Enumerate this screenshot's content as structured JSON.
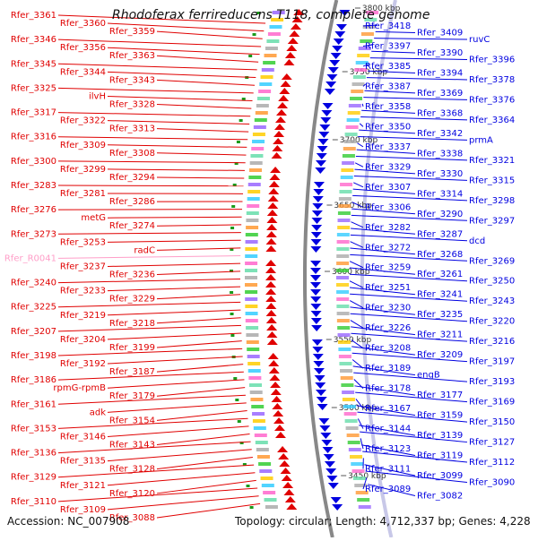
{
  "header": {
    "title": "Rhodoferax ferrireducens T118, complete genome"
  },
  "footer": {
    "accession": "Accession: NC_007908",
    "topology": "Topology: circular; Length: 4,712,337 bp; Genes: 4,228"
  },
  "colors": {
    "forward": "#e00000",
    "reverse": "#0000e0",
    "rna": "#ff9ec8",
    "backbone": "#888888",
    "tick": "#1a9a1a"
  },
  "scale_ticks": [
    "3800 kbp",
    "3750 kbp",
    "3700 kbp",
    "3650 kbp",
    "3600 kbp",
    "3550 kbp",
    "3500 kbp",
    "3450 kbp"
  ],
  "left_labels": [
    {
      "text": "Rfer_3361",
      "type": "gene"
    },
    {
      "text": "Rfer_3360",
      "type": "gene"
    },
    {
      "text": "Rfer_3359",
      "type": "gene"
    },
    {
      "text": "Rfer_3346",
      "type": "gene"
    },
    {
      "text": "Rfer_3356",
      "type": "gene"
    },
    {
      "text": "Rfer_3363",
      "type": "gene"
    },
    {
      "text": "Rfer_3345",
      "type": "gene"
    },
    {
      "text": "Rfer_3344",
      "type": "gene"
    },
    {
      "text": "Rfer_3343",
      "type": "gene"
    },
    {
      "text": "Rfer_3325",
      "type": "gene"
    },
    {
      "text": "ilvH",
      "type": "gene"
    },
    {
      "text": "Rfer_3328",
      "type": "gene"
    },
    {
      "text": "Rfer_3317",
      "type": "gene"
    },
    {
      "text": "Rfer_3322",
      "type": "gene"
    },
    {
      "text": "Rfer_3313",
      "type": "gene"
    },
    {
      "text": "Rfer_3316",
      "type": "gene"
    },
    {
      "text": "Rfer_3309",
      "type": "gene"
    },
    {
      "text": "Rfer_3308",
      "type": "gene"
    },
    {
      "text": "Rfer_3300",
      "type": "gene"
    },
    {
      "text": "Rfer_3299",
      "type": "gene"
    },
    {
      "text": "Rfer_3294",
      "type": "gene"
    },
    {
      "text": "Rfer_3283",
      "type": "gene"
    },
    {
      "text": "Rfer_3281",
      "type": "gene"
    },
    {
      "text": "Rfer_3286",
      "type": "gene"
    },
    {
      "text": "Rfer_3276",
      "type": "gene"
    },
    {
      "text": "metG",
      "type": "gene"
    },
    {
      "text": "Rfer_3274",
      "type": "gene"
    },
    {
      "text": "Rfer_3273",
      "type": "gene"
    },
    {
      "text": "Rfer_3253",
      "type": "gene"
    },
    {
      "text": "radC",
      "type": "gene"
    },
    {
      "text": "Rfer_R0041",
      "type": "rna"
    },
    {
      "text": "Rfer_3237",
      "type": "gene"
    },
    {
      "text": "Rfer_3236",
      "type": "gene"
    },
    {
      "text": "Rfer_3240",
      "type": "gene"
    },
    {
      "text": "Rfer_3233",
      "type": "gene"
    },
    {
      "text": "Rfer_3229",
      "type": "gene"
    },
    {
      "text": "Rfer_3225",
      "type": "gene"
    },
    {
      "text": "Rfer_3219",
      "type": "gene"
    },
    {
      "text": "Rfer_3218",
      "type": "gene"
    },
    {
      "text": "Rfer_3207",
      "type": "gene"
    },
    {
      "text": "Rfer_3204",
      "type": "gene"
    },
    {
      "text": "Rfer_3199",
      "type": "gene"
    },
    {
      "text": "Rfer_3198",
      "type": "gene"
    },
    {
      "text": "Rfer_3192",
      "type": "gene"
    },
    {
      "text": "Rfer_3187",
      "type": "gene"
    },
    {
      "text": "Rfer_3186",
      "type": "gene"
    },
    {
      "text": "rpmG-rpmB",
      "type": "gene"
    },
    {
      "text": "Rfer_3179",
      "type": "gene"
    },
    {
      "text": "Rfer_3161",
      "type": "gene"
    },
    {
      "text": "adk",
      "type": "gene"
    },
    {
      "text": "Rfer_3154",
      "type": "gene"
    },
    {
      "text": "Rfer_3153",
      "type": "gene"
    },
    {
      "text": "Rfer_3146",
      "type": "gene"
    },
    {
      "text": "Rfer_3143",
      "type": "gene"
    },
    {
      "text": "Rfer_3136",
      "type": "gene"
    },
    {
      "text": "Rfer_3135",
      "type": "gene"
    },
    {
      "text": "Rfer_3128",
      "type": "gene"
    },
    {
      "text": "Rfer_3129",
      "type": "gene"
    },
    {
      "text": "Rfer_3121",
      "type": "gene"
    },
    {
      "text": "Rfer_3120",
      "type": "gene"
    },
    {
      "text": "Rfer_3110",
      "type": "gene"
    },
    {
      "text": "Rfer_3109",
      "type": "gene"
    },
    {
      "text": "Rfer_3088",
      "type": "gene"
    }
  ],
  "right_labels": [
    {
      "text": "Rfer_3418"
    },
    {
      "text": "Rfer_3409"
    },
    {
      "text": "ruvC"
    },
    {
      "text": "Rfer_3397"
    },
    {
      "text": "Rfer_3390"
    },
    {
      "text": "Rfer_3396"
    },
    {
      "text": "Rfer_3385"
    },
    {
      "text": "Rfer_3394"
    },
    {
      "text": "Rfer_3378"
    },
    {
      "text": "Rfer_3387"
    },
    {
      "text": "Rfer_3369"
    },
    {
      "text": "Rfer_3376"
    },
    {
      "text": "Rfer_3358"
    },
    {
      "text": "Rfer_3368"
    },
    {
      "text": "Rfer_3364"
    },
    {
      "text": "Rfer_3350"
    },
    {
      "text": "Rfer_3342"
    },
    {
      "text": "prmA"
    },
    {
      "text": "Rfer_3337"
    },
    {
      "text": "Rfer_3338"
    },
    {
      "text": "Rfer_3321"
    },
    {
      "text": "Rfer_3329"
    },
    {
      "text": "Rfer_3330"
    },
    {
      "text": "Rfer_3315"
    },
    {
      "text": "Rfer_3307"
    },
    {
      "text": "Rfer_3314"
    },
    {
      "text": "Rfer_3298"
    },
    {
      "text": "Rfer_3306"
    },
    {
      "text": "Rfer_3290"
    },
    {
      "text": "Rfer_3297"
    },
    {
      "text": "Rfer_3282"
    },
    {
      "text": "Rfer_3287"
    },
    {
      "text": "dcd"
    },
    {
      "text": "Rfer_3272"
    },
    {
      "text": "Rfer_3268"
    },
    {
      "text": "Rfer_3269"
    },
    {
      "text": "Rfer_3259"
    },
    {
      "text": "Rfer_3261"
    },
    {
      "text": "Rfer_3250"
    },
    {
      "text": "Rfer_3251"
    },
    {
      "text": "Rfer_3241"
    },
    {
      "text": "Rfer_3243"
    },
    {
      "text": "Rfer_3230"
    },
    {
      "text": "Rfer_3235"
    },
    {
      "text": "Rfer_3220"
    },
    {
      "text": "Rfer_3226"
    },
    {
      "text": "Rfer_3211"
    },
    {
      "text": "Rfer_3216"
    },
    {
      "text": "Rfer_3208"
    },
    {
      "text": "Rfer_3209"
    },
    {
      "text": "Rfer_3197"
    },
    {
      "text": "Rfer_3189"
    },
    {
      "text": "engB"
    },
    {
      "text": "Rfer_3193"
    },
    {
      "text": "Rfer_3178"
    },
    {
      "text": "Rfer_3177"
    },
    {
      "text": "Rfer_3169"
    },
    {
      "text": "Rfer_3167"
    },
    {
      "text": "Rfer_3159"
    },
    {
      "text": "Rfer_3150"
    },
    {
      "text": "Rfer_3144"
    },
    {
      "text": "Rfer_3139"
    },
    {
      "text": "Rfer_3127"
    },
    {
      "text": "Rfer_3123"
    },
    {
      "text": "Rfer_3119"
    },
    {
      "text": "Rfer_3112"
    },
    {
      "text": "Rfer_3111"
    },
    {
      "text": "Rfer_3099"
    },
    {
      "text": "Rfer_3090"
    },
    {
      "text": "Rfer_3089"
    },
    {
      "text": "Rfer_3082"
    }
  ]
}
